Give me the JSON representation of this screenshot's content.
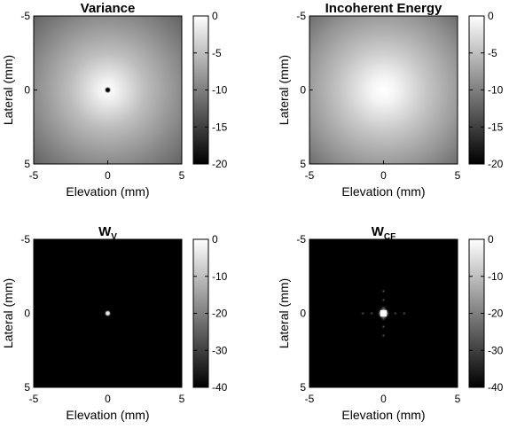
{
  "chart_data": [
    {
      "type": "heatmap",
      "title": "Variance",
      "title_sub": "",
      "xlabel": "Elevation (mm)",
      "ylabel": "Lateral (mm)",
      "xlim": [
        -5,
        5
      ],
      "ylim": [
        -5,
        5
      ],
      "x_ticks": [
        "-5",
        "0",
        "5"
      ],
      "y_ticks": [
        "-5",
        "0",
        "5"
      ],
      "y_reversed": true,
      "colormap": "gray",
      "clim": [
        -20,
        0
      ],
      "colorbar_ticks": [
        "0",
        "-5",
        "-10",
        "-15",
        "-20"
      ],
      "colorbar_tick_values": [
        0,
        -5,
        -10,
        -15,
        -20
      ],
      "pattern": "radial brightening toward center with small dark spot at origin"
    },
    {
      "type": "heatmap",
      "title": "Incoherent Energy",
      "title_sub": "",
      "xlabel": "Elevation (mm)",
      "ylabel": "Lateral (mm)",
      "xlim": [
        -5,
        5
      ],
      "ylim": [
        -5,
        5
      ],
      "x_ticks": [
        "-5",
        "0",
        "5"
      ],
      "y_ticks": [
        "-5",
        "0",
        "5"
      ],
      "y_reversed": true,
      "colormap": "gray",
      "clim": [
        -20,
        0
      ],
      "colorbar_ticks": [
        "0",
        "-5",
        "-10",
        "-15",
        "-20"
      ],
      "colorbar_tick_values": [
        0,
        -5,
        -10,
        -15,
        -20
      ],
      "pattern": "smooth radial falloff from bright center"
    },
    {
      "type": "heatmap",
      "title": "W",
      "title_sub": "V",
      "xlabel": "Elevation (mm)",
      "ylabel": "Lateral (mm)",
      "xlim": [
        -5,
        5
      ],
      "ylim": [
        -5,
        5
      ],
      "x_ticks": [
        "-5",
        "0",
        "5"
      ],
      "y_ticks": [
        "-5",
        "0",
        "5"
      ],
      "y_reversed": true,
      "colormap": "gray",
      "clim": [
        -40,
        0
      ],
      "colorbar_ticks": [
        "0",
        "-10",
        "-20",
        "-30",
        "-40"
      ],
      "colorbar_tick_values": [
        0,
        -10,
        -20,
        -30,
        -40
      ],
      "pattern": "dark field with single small bright spot at origin"
    },
    {
      "type": "heatmap",
      "title": "W",
      "title_sub": "CF",
      "xlabel": "Elevation (mm)",
      "ylabel": "Lateral (mm)",
      "xlim": [
        -5,
        5
      ],
      "ylim": [
        -5,
        5
      ],
      "x_ticks": [
        "-5",
        "0",
        "5"
      ],
      "y_ticks": [
        "-5",
        "0",
        "5"
      ],
      "y_reversed": true,
      "colormap": "gray",
      "clim": [
        -40,
        0
      ],
      "colorbar_ticks": [
        "0",
        "-10",
        "-20",
        "-30",
        "-40"
      ],
      "colorbar_tick_values": [
        0,
        -10,
        -20,
        -30,
        -40
      ],
      "pattern": "dark field with bright center spot and faint sidelobes along both axes"
    }
  ]
}
